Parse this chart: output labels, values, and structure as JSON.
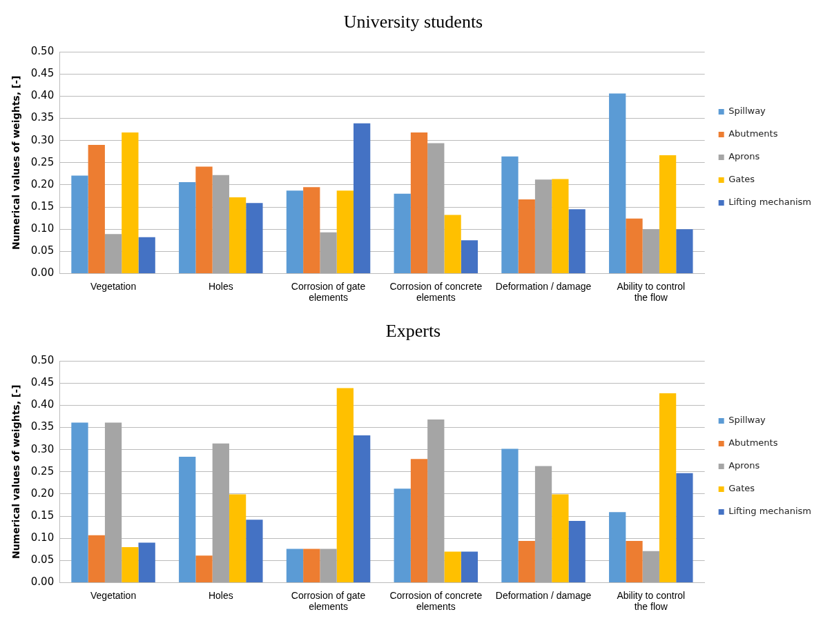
{
  "chart_data": [
    {
      "type": "bar",
      "title": "University students",
      "ylabel": "Numerical values of weights, [-]",
      "categories": [
        "Vegetation",
        "Holes",
        "Corrosion of gate elements",
        "Corrosion of concrete elements",
        "Deformation / damage",
        "Ability to control the flow"
      ],
      "series": [
        {
          "name": "Spillway",
          "color": "#5b9bd5",
          "values": [
            0.221,
            0.206,
            0.187,
            0.18,
            0.264,
            0.406
          ]
        },
        {
          "name": "Abutments",
          "color": "#ed7d31",
          "values": [
            0.29,
            0.241,
            0.195,
            0.318,
            0.167,
            0.124
          ]
        },
        {
          "name": "Aprons",
          "color": "#a5a5a5",
          "values": [
            0.089,
            0.222,
            0.093,
            0.294,
            0.212,
            0.1
          ]
        },
        {
          "name": "Gates",
          "color": "#ffc000",
          "values": [
            0.318,
            0.172,
            0.187,
            0.132,
            0.213,
            0.267
          ]
        },
        {
          "name": "Lifting mechanism",
          "color": "#4472c4",
          "values": [
            0.082,
            0.159,
            0.339,
            0.075,
            0.145,
            0.1
          ]
        }
      ],
      "ylim": [
        0,
        0.5
      ],
      "yticks": [
        {
          "value": 0,
          "label": "0.00"
        },
        {
          "value": 0.05,
          "label": "0.05"
        },
        {
          "value": 0.1,
          "label": "0.10"
        },
        {
          "value": 0.15,
          "label": "0.15"
        },
        {
          "value": 0.2,
          "label": "0.20"
        },
        {
          "value": 0.25,
          "label": "0.25"
        },
        {
          "value": 0.3,
          "label": "0.30"
        },
        {
          "value": 0.35,
          "label": "0.35"
        },
        {
          "value": 0.4,
          "label": "0.40"
        },
        {
          "value": 0.45,
          "label": "0.45"
        },
        {
          "value": 0.5,
          "label": "0.50"
        }
      ],
      "grid": "y",
      "legend": "right"
    },
    {
      "type": "bar",
      "title": "Experts",
      "ylabel": "Numerical values of weights, [-]",
      "categories": [
        "Vegetation",
        "Holes",
        "Corrosion of gate elements",
        "Corrosion of concrete elements",
        "Deformation / damage",
        "Ability to control the flow"
      ],
      "series": [
        {
          "name": "Spillway",
          "color": "#5b9bd5",
          "values": [
            0.361,
            0.284,
            0.076,
            0.212,
            0.302,
            0.159
          ]
        },
        {
          "name": "Abutments",
          "color": "#ed7d31",
          "values": [
            0.107,
            0.061,
            0.076,
            0.279,
            0.094,
            0.094
          ]
        },
        {
          "name": "Aprons",
          "color": "#a5a5a5",
          "values": [
            0.361,
            0.314,
            0.076,
            0.368,
            0.263,
            0.071
          ]
        },
        {
          "name": "Gates",
          "color": "#ffc000",
          "values": [
            0.08,
            0.199,
            0.439,
            0.07,
            0.199,
            0.427
          ]
        },
        {
          "name": "Lifting mechanism",
          "color": "#4472c4",
          "values": [
            0.09,
            0.142,
            0.332,
            0.07,
            0.139,
            0.247
          ]
        }
      ],
      "ylim": [
        0,
        0.5
      ],
      "yticks": [
        {
          "value": 0,
          "label": "0.00"
        },
        {
          "value": 0.05,
          "label": "0.05"
        },
        {
          "value": 0.1,
          "label": "0.10"
        },
        {
          "value": 0.15,
          "label": "0.15"
        },
        {
          "value": 0.2,
          "label": "0.20"
        },
        {
          "value": 0.25,
          "label": "0.25"
        },
        {
          "value": 0.3,
          "label": "0.30"
        },
        {
          "value": 0.35,
          "label": "0.35"
        },
        {
          "value": 0.4,
          "label": "0.40"
        },
        {
          "value": 0.45,
          "label": "0.45"
        },
        {
          "value": 0.5,
          "label": "0.50"
        }
      ],
      "grid": "y",
      "legend": "right"
    }
  ]
}
